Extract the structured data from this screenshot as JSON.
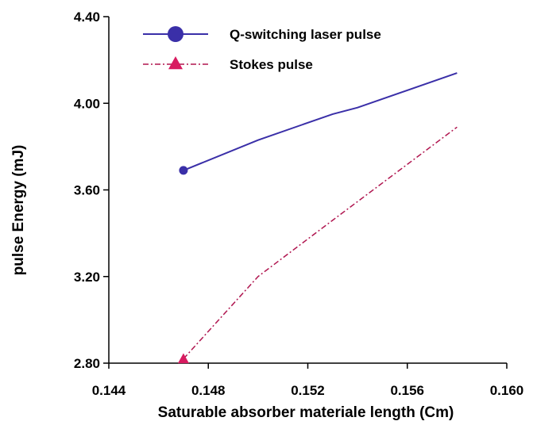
{
  "chart_data": {
    "type": "line",
    "title": "",
    "xlabel": "Saturable absorber materiale length (Cm)",
    "ylabel": "pulse Energy  (mJ)",
    "xlim": [
      0.144,
      0.16
    ],
    "ylim": [
      2.8,
      4.4
    ],
    "xticks": [
      0.144,
      0.148,
      0.152,
      0.156,
      0.16
    ],
    "xtick_labels": [
      "0.144",
      "0.148",
      "0.152",
      "0.156",
      "0.160"
    ],
    "yticks": [
      2.8,
      3.2,
      3.6,
      4.0,
      4.4
    ],
    "ytick_labels": [
      "2.80",
      "3.20",
      "3.60",
      "4.00",
      "4.40"
    ],
    "grid": false,
    "legend_position": "top-center",
    "series": [
      {
        "name": "Q-switching laser pulse",
        "color": "#3a2fa8",
        "marker": "circle",
        "line_style": "solid",
        "x": [
          0.147,
          0.15,
          0.153,
          0.154,
          0.158
        ],
        "y": [
          3.69,
          3.83,
          3.95,
          3.98,
          4.14
        ]
      },
      {
        "name": "Stokes pulse",
        "color": "#b0154f",
        "marker": "triangle",
        "line_style": "dash-dot",
        "x": [
          0.147,
          0.15,
          0.153,
          0.158
        ],
        "y": [
          2.82,
          3.2,
          3.46,
          3.89
        ]
      }
    ]
  }
}
